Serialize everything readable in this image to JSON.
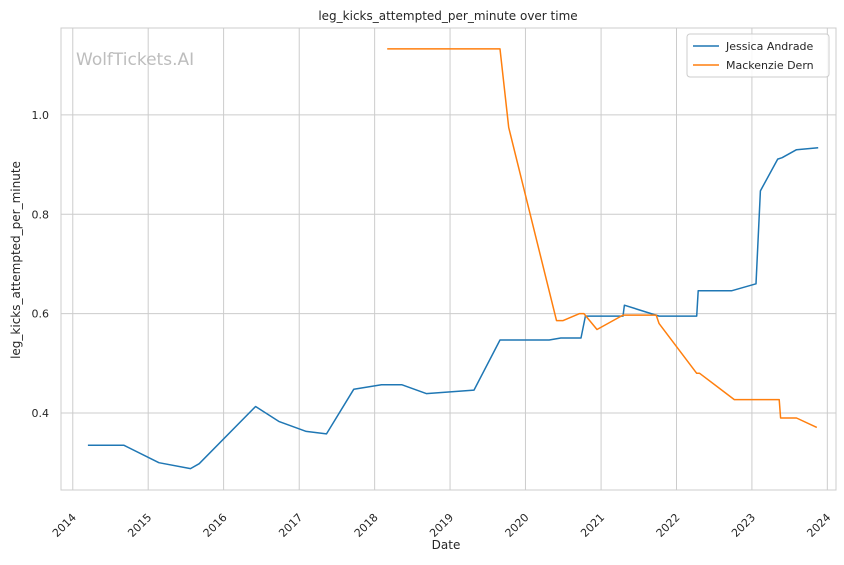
{
  "watermark": "WolfTickets.AI",
  "chart_data": {
    "type": "line",
    "title": "leg_kicks_attempted_per_minute over time",
    "xlabel": "Date",
    "ylabel": "leg_kicks_attempted_per_minute",
    "xlim": [
      "2013-11-05",
      "2024-02-12"
    ],
    "ylim": [
      0.245,
      1.175
    ],
    "x_ticks": [
      "2014",
      "2015",
      "2016",
      "2017",
      "2018",
      "2019",
      "2020",
      "2021",
      "2022",
      "2023",
      "2024"
    ],
    "y_ticks": [
      0.4,
      0.6,
      0.8,
      1.0
    ],
    "y_tick_labels": [
      "0.4",
      "0.6",
      "0.8",
      "1.0"
    ],
    "grid": true,
    "legend_position": "top-right",
    "series": [
      {
        "name": "Jessica Andrade",
        "color": "#1f77b4",
        "points": [
          [
            "2014-03-15",
            0.335
          ],
          [
            "2014-09-06",
            0.335
          ],
          [
            "2015-02-22",
            0.3
          ],
          [
            "2015-07-25",
            0.288
          ],
          [
            "2015-09-05",
            0.298
          ],
          [
            "2016-06-04",
            0.413
          ],
          [
            "2016-09-24",
            0.383
          ],
          [
            "2017-02-04",
            0.363
          ],
          [
            "2017-05-13",
            0.358
          ],
          [
            "2017-09-22",
            0.448
          ],
          [
            "2018-02-03",
            0.457
          ],
          [
            "2018-05-12",
            0.457
          ],
          [
            "2018-09-08",
            0.439
          ],
          [
            "2019-04-27",
            0.446
          ],
          [
            "2019-08-31",
            0.547
          ],
          [
            "2020-04-25",
            0.547
          ],
          [
            "2020-06-20",
            0.551
          ],
          [
            "2020-09-26",
            0.551
          ],
          [
            "2020-10-17",
            0.595
          ],
          [
            "2021-04-17",
            0.595
          ],
          [
            "2021-04-24",
            0.617
          ],
          [
            "2021-10-09",
            0.595
          ],
          [
            "2022-04-09",
            0.595
          ],
          [
            "2022-04-16",
            0.646
          ],
          [
            "2022-09-24",
            0.646
          ],
          [
            "2023-01-21",
            0.66
          ],
          [
            "2023-02-11",
            0.847
          ],
          [
            "2023-05-06",
            0.911
          ],
          [
            "2023-05-27",
            0.914
          ],
          [
            "2023-08-05",
            0.93
          ],
          [
            "2023-11-18",
            0.934
          ]
        ]
      },
      {
        "name": "Mackenzie Dern",
        "color": "#ff7f0e",
        "points": [
          [
            "2018-03-03",
            1.133
          ],
          [
            "2019-08-31",
            1.133
          ],
          [
            "2019-10-12",
            0.975
          ],
          [
            "2020-05-30",
            0.586
          ],
          [
            "2020-07-01",
            0.586
          ],
          [
            "2020-09-19",
            0.6
          ],
          [
            "2020-10-10",
            0.6
          ],
          [
            "2020-12-12",
            0.568
          ],
          [
            "2021-04-17",
            0.597
          ],
          [
            "2021-09-25",
            0.597
          ],
          [
            "2021-10-09",
            0.58
          ],
          [
            "2022-04-09",
            0.48
          ],
          [
            "2022-04-23",
            0.48
          ],
          [
            "2022-10-08",
            0.427
          ],
          [
            "2023-04-22",
            0.427
          ],
          [
            "2023-05-13",
            0.427
          ],
          [
            "2023-05-20",
            0.39
          ],
          [
            "2023-08-05",
            0.39
          ],
          [
            "2023-11-11",
            0.371
          ]
        ]
      }
    ]
  }
}
